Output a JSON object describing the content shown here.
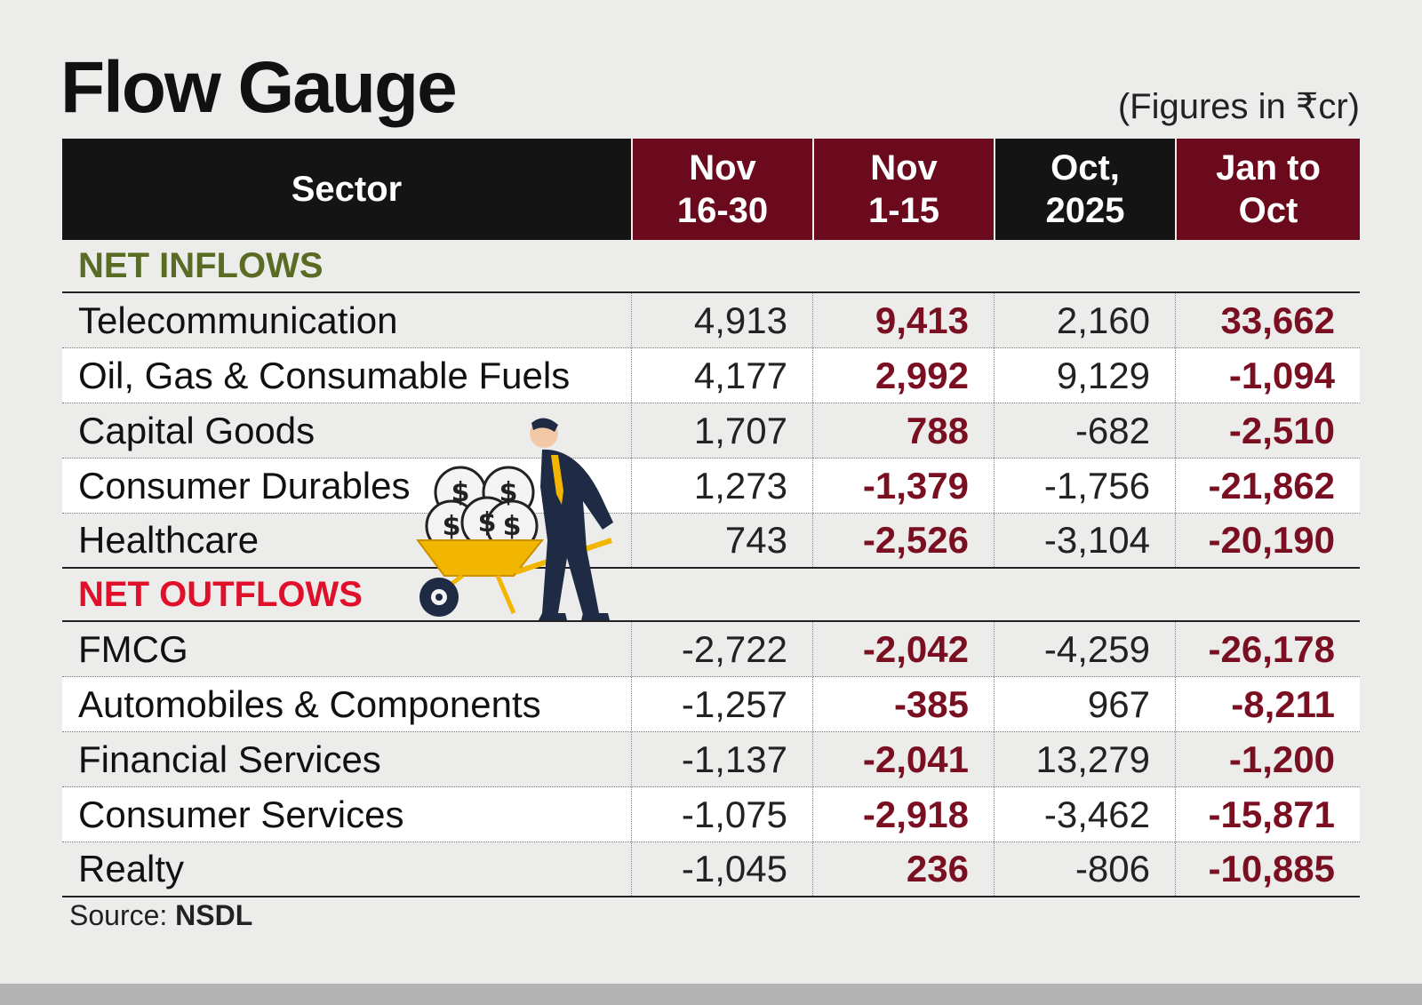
{
  "title": "Flow Gauge",
  "units": "(Figures in ₹cr)",
  "headers": [
    "Sector",
    "Nov\n16-30",
    "Nov\n1-15",
    "Oct,\n2025",
    "Jan to\nOct"
  ],
  "sections": [
    {
      "label": "NET INFLOWS",
      "rows": [
        {
          "sector": "Telecommunication",
          "v1": "4,913",
          "v2": "9,413",
          "v3": "2,160",
          "v4": "33,662"
        },
        {
          "sector": "Oil, Gas & Consumable Fuels",
          "v1": "4,177",
          "v2": "2,992",
          "v3": "9,129",
          "v4": "-1,094"
        },
        {
          "sector": "Capital Goods",
          "v1": "1,707",
          "v2": "788",
          "v3": "-682",
          "v4": "-2,510"
        },
        {
          "sector": "Consumer Durables",
          "v1": "1,273",
          "v2": "-1,379",
          "v3": "-1,756",
          "v4": "-21,862"
        },
        {
          "sector": "Healthcare",
          "v1": "743",
          "v2": "-2,526",
          "v3": "-3,104",
          "v4": "-20,190"
        }
      ]
    },
    {
      "label": "NET OUTFLOWS",
      "rows": [
        {
          "sector": "FMCG",
          "v1": "-2,722",
          "v2": "-2,042",
          "v3": "-4,259",
          "v4": "-26,178"
        },
        {
          "sector": "Automobiles & Components",
          "v1": "-1,257",
          "v2": "-385",
          "v3": "967",
          "v4": "-8,211"
        },
        {
          "sector": "Financial Services",
          "v1": "-1,137",
          "v2": "-2,041",
          "v3": "13,279",
          "v4": "-1,200"
        },
        {
          "sector": "Consumer Services",
          "v1": "-1,075",
          "v2": "-2,918",
          "v3": "-3,462",
          "v4": "-15,871"
        },
        {
          "sector": "Realty",
          "v1": "-1,045",
          "v2": "236",
          "v3": "-806",
          "v4": "-10,885"
        }
      ]
    }
  ],
  "source_label": "Source:",
  "source_value": "NSDL",
  "colors": {
    "wine": "#6b0a1d",
    "header_dark": "#141414",
    "inflow": "#5a6b23",
    "outflow": "#e0102a"
  }
}
